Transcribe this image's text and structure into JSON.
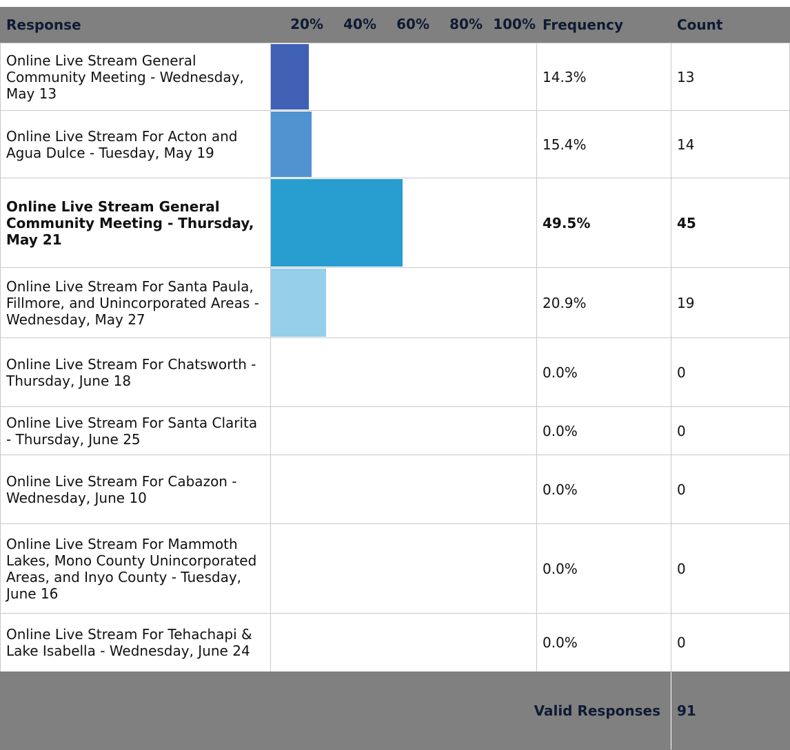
{
  "table": {
    "columns": [
      "Response",
      "Frequency",
      "Count"
    ],
    "bar_scale": [
      0,
      100
    ],
    "bar_ticks": [
      {
        "value": 20,
        "label": "20%"
      },
      {
        "value": 40,
        "label": "40%"
      },
      {
        "value": 60,
        "label": "60%"
      },
      {
        "value": 80,
        "label": "80%"
      },
      {
        "value": 100,
        "label": "100%"
      }
    ],
    "highlight_row": 2,
    "rows": [
      {
        "response": "Online Live Stream General Community Meeting - Wednesday, May 13",
        "frequency": 14.3,
        "frequency_label": "14.3%",
        "count": 13,
        "color": "#3f60b5"
      },
      {
        "response": "Online Live Stream For Acton and Agua Dulce - Tuesday, May 19",
        "frequency": 15.4,
        "frequency_label": "15.4%",
        "count": 14,
        "color": "#5093d0"
      },
      {
        "response": "Online Live Stream General Community Meeting - Thursday, May 21",
        "frequency": 49.5,
        "frequency_label": "49.5%",
        "count": 45,
        "color": "#279dd0"
      },
      {
        "response": "Online Live Stream For Santa Paula, Fillmore, and Unincorporated Areas - Wednesday, May 27",
        "frequency": 20.9,
        "frequency_label": "20.9%",
        "count": 19,
        "color": "#96cfea"
      },
      {
        "response": "Online Live Stream For Chatsworth - Thursday, June 18",
        "frequency": 0,
        "frequency_label": "0.0%",
        "count": 0,
        "color": "#3f60b5"
      },
      {
        "response": "Online Live Stream For Santa Clarita - Thursday, June 25",
        "frequency": 0,
        "frequency_label": "0.0%",
        "count": 0,
        "color": "#5093d0"
      },
      {
        "response": "Online Live Stream For Cabazon - Wednesday, June 10",
        "frequency": 0,
        "frequency_label": "0.0%",
        "count": 0,
        "color": "#279dd0"
      },
      {
        "response": "Online Live Stream For Mammoth Lakes, Mono County Unincorporated Areas, and Inyo County - Tuesday, June 16",
        "frequency": 0,
        "frequency_label": "0.0%",
        "count": 0,
        "color": "#96cfea"
      },
      {
        "response": "Online Live Stream For Tehachapi & Lake Isabella - Wednesday, June 24",
        "frequency": 0,
        "frequency_label": "0.0%",
        "count": 0,
        "color": "#3f60b5"
      }
    ],
    "footer": {
      "label": "Valid Responses",
      "value": 91
    }
  }
}
